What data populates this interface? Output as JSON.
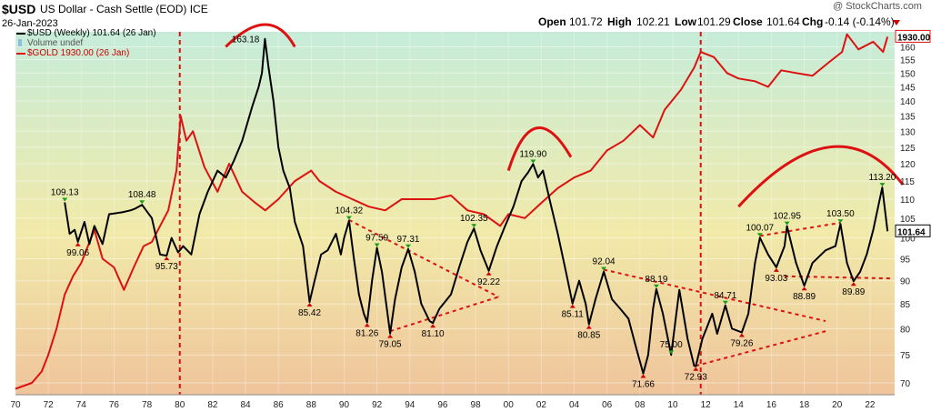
{
  "header": {
    "symbol": "$USD",
    "description": "US Dollar - Cash Settle (EOD) ICE",
    "date": "26-Jan-2023",
    "copyright": "@ StockCharts.com",
    "open_label": "Open",
    "open": "101.72",
    "high_label": "High",
    "high": "102.21",
    "low_label": "Low",
    "low": "101.29",
    "close_label": "Close",
    "close": "101.64",
    "chg_label": "Chg",
    "chg": "-0.14 (-0.14%)"
  },
  "legend": {
    "usd": "$USD (Weekly) 101.64 (26 Jan)",
    "volume": "Volume undef",
    "gold": "$GOLD 1930.00 (26 Jan)"
  },
  "colors": {
    "usd": "#000000",
    "gold": "#dd1111",
    "bg_top": "#c6ecd9",
    "bg_mid": "#f1eaa9",
    "bg_bottom": "#efc49b",
    "up_arrow": "#1a9e1a",
    "down_arrow": "#cc0000",
    "axis_text": "#222222"
  },
  "chart_data": {
    "type": "line",
    "x_range": [
      1970,
      2023.5
    ],
    "y_range": [
      68,
      166
    ],
    "scale": "log",
    "x_ticks": [
      "70",
      "72",
      "74",
      "76",
      "78",
      "80",
      "82",
      "84",
      "86",
      "88",
      "90",
      "92",
      "94",
      "96",
      "98",
      "00",
      "02",
      "04",
      "06",
      "08",
      "10",
      "12",
      "14",
      "16",
      "18",
      "20",
      "22"
    ],
    "y_ticks": [
      70,
      75,
      80,
      85,
      90,
      95,
      100,
      105,
      110,
      115,
      120,
      125,
      130,
      135,
      140,
      145,
      150,
      155,
      160
    ],
    "last_values": {
      "usd": "101.64",
      "gold": "1930.00"
    },
    "series": [
      {
        "name": "$USD (Weekly)",
        "color": "#000000",
        "points": [
          [
            1973.0,
            109.13
          ],
          [
            1973.3,
            101
          ],
          [
            1973.6,
            102
          ],
          [
            1973.8,
            99.06
          ],
          [
            1974.2,
            104
          ],
          [
            1974.5,
            98.5
          ],
          [
            1974.8,
            103
          ],
          [
            1975.3,
            98.5
          ],
          [
            1975.7,
            106
          ],
          [
            1976.5,
            106.5
          ],
          [
            1977.0,
            107
          ],
          [
            1977.3,
            107.5
          ],
          [
            1977.7,
            108.48
          ],
          [
            1978.3,
            105
          ],
          [
            1978.8,
            96
          ],
          [
            1979.2,
            95.73
          ],
          [
            1979.5,
            100
          ],
          [
            1979.9,
            96.5
          ],
          [
            1980.2,
            98
          ],
          [
            1980.7,
            96
          ],
          [
            1981.2,
            106
          ],
          [
            1981.7,
            112
          ],
          [
            1982.3,
            118
          ],
          [
            1982.8,
            116
          ],
          [
            1983.3,
            121
          ],
          [
            1983.8,
            127
          ],
          [
            1984.4,
            138
          ],
          [
            1984.8,
            145
          ],
          [
            1985.0,
            150
          ],
          [
            1985.18,
            163.18
          ],
          [
            1985.4,
            152
          ],
          [
            1985.7,
            140
          ],
          [
            1986.0,
            125
          ],
          [
            1986.3,
            118
          ],
          [
            1986.7,
            113
          ],
          [
            1987.0,
            104
          ],
          [
            1987.5,
            98
          ],
          [
            1987.9,
            85.42
          ],
          [
            1988.2,
            90
          ],
          [
            1988.6,
            96
          ],
          [
            1989.0,
            97
          ],
          [
            1989.5,
            101
          ],
          [
            1989.8,
            96
          ],
          [
            1990.0,
            100
          ],
          [
            1990.3,
            104.32
          ],
          [
            1990.6,
            95
          ],
          [
            1990.9,
            87
          ],
          [
            1991.2,
            83
          ],
          [
            1991.4,
            81.26
          ],
          [
            1991.7,
            90
          ],
          [
            1992.0,
            97.59
          ],
          [
            1992.3,
            92
          ],
          [
            1992.6,
            84
          ],
          [
            1992.8,
            79.05
          ],
          [
            1993.1,
            86
          ],
          [
            1993.5,
            93
          ],
          [
            1993.9,
            97.31
          ],
          [
            1994.3,
            92
          ],
          [
            1994.7,
            85
          ],
          [
            1995.2,
            81.5
          ],
          [
            1995.4,
            81.1
          ],
          [
            1995.8,
            84
          ],
          [
            1996.5,
            87
          ],
          [
            1997.0,
            93
          ],
          [
            1997.5,
            99
          ],
          [
            1997.9,
            102.35
          ],
          [
            1998.3,
            97
          ],
          [
            1998.8,
            92.22
          ],
          [
            1999.3,
            98
          ],
          [
            1999.8,
            103
          ],
          [
            2000.3,
            108
          ],
          [
            2000.8,
            115
          ],
          [
            2001.2,
            117.5
          ],
          [
            2001.5,
            119.9
          ],
          [
            2001.8,
            116
          ],
          [
            2002.1,
            118
          ],
          [
            2002.5,
            110
          ],
          [
            2003.0,
            101
          ],
          [
            2003.5,
            92
          ],
          [
            2003.9,
            85.11
          ],
          [
            2004.3,
            90
          ],
          [
            2004.7,
            85
          ],
          [
            2004.9,
            80.85
          ],
          [
            2005.3,
            86
          ],
          [
            2005.8,
            92.04
          ],
          [
            2006.3,
            86
          ],
          [
            2006.8,
            84
          ],
          [
            2007.3,
            82
          ],
          [
            2007.8,
            76
          ],
          [
            2008.2,
            71.66
          ],
          [
            2008.5,
            75
          ],
          [
            2008.8,
            84
          ],
          [
            2009.0,
            88.19
          ],
          [
            2009.4,
            83
          ],
          [
            2009.9,
            75.0
          ],
          [
            2010.4,
            88
          ],
          [
            2010.9,
            78
          ],
          [
            2011.3,
            73
          ],
          [
            2011.4,
            72.93
          ],
          [
            2011.8,
            78
          ],
          [
            2012.4,
            83
          ],
          [
            2012.7,
            79
          ],
          [
            2013.2,
            84.71
          ],
          [
            2013.6,
            80
          ],
          [
            2014.2,
            79.26
          ],
          [
            2014.6,
            83
          ],
          [
            2015.0,
            94
          ],
          [
            2015.3,
            100.07
          ],
          [
            2015.8,
            96
          ],
          [
            2016.3,
            93.03
          ],
          [
            2016.8,
            98
          ],
          [
            2016.95,
            102.95
          ],
          [
            2017.5,
            94
          ],
          [
            2018.0,
            88.89
          ],
          [
            2018.5,
            94
          ],
          [
            2019.3,
            97
          ],
          [
            2019.9,
            98
          ],
          [
            2020.2,
            103.5
          ],
          [
            2020.6,
            94
          ],
          [
            2021.0,
            89.89
          ],
          [
            2021.4,
            92
          ],
          [
            2021.8,
            96
          ],
          [
            2022.2,
            102
          ],
          [
            2022.5,
            108
          ],
          [
            2022.75,
            113.2
          ],
          [
            2023.07,
            101.64
          ]
        ]
      },
      {
        "name": "$GOLD",
        "color": "#dd1111",
        "points": [
          [
            1970.0,
            69
          ],
          [
            1971.0,
            70
          ],
          [
            1971.6,
            72
          ],
          [
            1972.0,
            75
          ],
          [
            1972.5,
            80
          ],
          [
            1973.0,
            87
          ],
          [
            1973.5,
            91
          ],
          [
            1974.0,
            94
          ],
          [
            1974.8,
            102
          ],
          [
            1975.3,
            95
          ],
          [
            1976.0,
            93
          ],
          [
            1976.6,
            88
          ],
          [
            1977.2,
            93
          ],
          [
            1977.8,
            98
          ],
          [
            1978.3,
            99
          ],
          [
            1978.8,
            103
          ],
          [
            1979.3,
            107
          ],
          [
            1979.8,
            118
          ],
          [
            1980.05,
            135
          ],
          [
            1980.4,
            127
          ],
          [
            1980.8,
            130
          ],
          [
            1981.5,
            119
          ],
          [
            1982.3,
            112
          ],
          [
            1983.0,
            120
          ],
          [
            1983.8,
            112
          ],
          [
            1984.6,
            109
          ],
          [
            1985.2,
            107
          ],
          [
            1986.0,
            110
          ],
          [
            1987.0,
            115
          ],
          [
            1988.0,
            118
          ],
          [
            1988.5,
            115
          ],
          [
            1989.5,
            112
          ],
          [
            1990.5,
            110
          ],
          [
            1991.5,
            108
          ],
          [
            1992.5,
            107
          ],
          [
            1993.5,
            110
          ],
          [
            1994.5,
            110
          ],
          [
            1995.5,
            110
          ],
          [
            1996.5,
            111
          ],
          [
            1997.5,
            107
          ],
          [
            1998.5,
            106
          ],
          [
            1999.5,
            103
          ],
          [
            2000.0,
            106
          ],
          [
            2001.0,
            105
          ],
          [
            2002.0,
            109
          ],
          [
            2003.0,
            113
          ],
          [
            2004.0,
            116
          ],
          [
            2005.0,
            118
          ],
          [
            2006.0,
            124
          ],
          [
            2007.0,
            127
          ],
          [
            2008.0,
            132
          ],
          [
            2008.8,
            128
          ],
          [
            2009.5,
            137
          ],
          [
            2010.5,
            144
          ],
          [
            2011.3,
            152
          ],
          [
            2011.7,
            158
          ],
          [
            2012.5,
            156
          ],
          [
            2013.3,
            150
          ],
          [
            2014.0,
            148
          ],
          [
            2015.0,
            147
          ],
          [
            2015.8,
            145
          ],
          [
            2016.6,
            151
          ],
          [
            2017.5,
            150
          ],
          [
            2018.5,
            149
          ],
          [
            2019.5,
            154
          ],
          [
            2020.3,
            158
          ],
          [
            2020.6,
            165
          ],
          [
            2021.3,
            159
          ],
          [
            2022.2,
            162
          ],
          [
            2022.8,
            158
          ],
          [
            2023.07,
            164
          ]
        ]
      }
    ],
    "annotations": [
      {
        "text": "109.13",
        "x": 1973.0,
        "y": 109.13,
        "pos": "above"
      },
      {
        "text": "99.06",
        "x": 1973.8,
        "y": 99.06,
        "pos": "below"
      },
      {
        "text": "108.48",
        "x": 1977.7,
        "y": 108.48,
        "pos": "above"
      },
      {
        "text": "95.73",
        "x": 1979.2,
        "y": 95.73,
        "pos": "below"
      },
      {
        "text": "163.18",
        "x": 1985.18,
        "y": 163.18,
        "pos": "left"
      },
      {
        "text": "85.42",
        "x": 1987.9,
        "y": 85.42,
        "pos": "below"
      },
      {
        "text": "104.32",
        "x": 1990.3,
        "y": 104.32,
        "pos": "above"
      },
      {
        "text": "97.59",
        "x": 1992.0,
        "y": 97.59,
        "pos": "above"
      },
      {
        "text": "97.31",
        "x": 1993.9,
        "y": 97.31,
        "pos": "above"
      },
      {
        "text": "81.26",
        "x": 1991.4,
        "y": 81.26,
        "pos": "below"
      },
      {
        "text": "79.05",
        "x": 1992.8,
        "y": 79.05,
        "pos": "below"
      },
      {
        "text": "81.10",
        "x": 1995.4,
        "y": 81.1,
        "pos": "below"
      },
      {
        "text": "102.35",
        "x": 1997.9,
        "y": 102.35,
        "pos": "above"
      },
      {
        "text": "92.22",
        "x": 1998.8,
        "y": 92.22,
        "pos": "below"
      },
      {
        "text": "119.90",
        "x": 2001.5,
        "y": 119.9,
        "pos": "above"
      },
      {
        "text": "85.11",
        "x": 2003.9,
        "y": 85.11,
        "pos": "below"
      },
      {
        "text": "92.04",
        "x": 2005.8,
        "y": 92.04,
        "pos": "above"
      },
      {
        "text": "80.85",
        "x": 2004.9,
        "y": 80.85,
        "pos": "below"
      },
      {
        "text": "71.66",
        "x": 2008.2,
        "y": 71.66,
        "pos": "below"
      },
      {
        "text": "88.19",
        "x": 2009.0,
        "y": 88.19,
        "pos": "above"
      },
      {
        "text": "75.00",
        "x": 2009.9,
        "y": 75.0,
        "pos": "above"
      },
      {
        "text": "72.93",
        "x": 2011.4,
        "y": 72.93,
        "pos": "below"
      },
      {
        "text": "84.71",
        "x": 2013.2,
        "y": 84.71,
        "pos": "above"
      },
      {
        "text": "79.26",
        "x": 2014.2,
        "y": 79.26,
        "pos": "below"
      },
      {
        "text": "100.07",
        "x": 2015.3,
        "y": 100.07,
        "pos": "above"
      },
      {
        "text": "93.03",
        "x": 2016.3,
        "y": 93.03,
        "pos": "below"
      },
      {
        "text": "102.95",
        "x": 2016.95,
        "y": 102.95,
        "pos": "above"
      },
      {
        "text": "103.50",
        "x": 2020.2,
        "y": 103.5,
        "pos": "above"
      },
      {
        "text": "88.89",
        "x": 2018.0,
        "y": 88.89,
        "pos": "below"
      },
      {
        "text": "89.89",
        "x": 2021.0,
        "y": 89.89,
        "pos": "below"
      },
      {
        "text": "113.20",
        "x": 2022.75,
        "y": 113.2,
        "pos": "above"
      }
    ],
    "vertical_lines": [
      1980.0,
      2011.7
    ],
    "trendlines": [
      {
        "from": [
          1990.3,
          104.5
        ],
        "to": [
          1999.4,
          86.5
        ]
      },
      {
        "from": [
          1992.8,
          79.5
        ],
        "to": [
          1999.4,
          86.5
        ]
      },
      {
        "from": [
          2005.8,
          92.5
        ],
        "to": [
          2019.3,
          81.5
        ]
      },
      {
        "from": [
          2011.4,
          73.0
        ],
        "to": [
          2019.3,
          79.5
        ]
      },
      {
        "from": [
          2016.8,
          91.0
        ],
        "to": [
          2023.4,
          90.5
        ]
      },
      {
        "from": [
          2015.3,
          100.5
        ],
        "to": [
          2020.2,
          103.8
        ]
      }
    ],
    "arcs": [
      {
        "from": [
          1982.8,
          160
        ],
        "peak": [
          1985.2,
          169
        ],
        "to": [
          1987.0,
          160
        ]
      },
      {
        "from": [
          2000.0,
          118
        ],
        "peak": [
          2001.7,
          131
        ],
        "to": [
          2003.8,
          122
        ]
      },
      {
        "from": [
          2014.0,
          108
        ],
        "peak": [
          2019.5,
          125
        ],
        "to": [
          2024.0,
          114
        ]
      }
    ]
  }
}
